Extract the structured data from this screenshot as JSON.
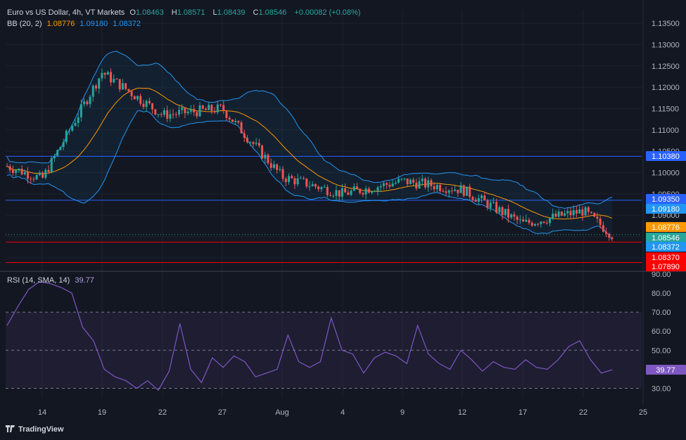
{
  "header": {
    "symbol": "Euro vs US Dollar, 4h, VT Markets",
    "open_label": "O",
    "open": "1.08463",
    "high_label": "H",
    "high": "1.08571",
    "low_label": "L",
    "low": "1.08439",
    "close_label": "C",
    "close": "1.08546",
    "change": "+0.00082 (+0.08%)",
    "bb_label": "BB (20, 2)",
    "bb_basis": "1.08776",
    "bb_upper": "1.09180",
    "bb_lower": "1.08372",
    "rsi_label": "RSI (14, SMA, 14)",
    "rsi_value": "39.77"
  },
  "logo_text": "TradingView",
  "colors": {
    "background": "#131722",
    "up": "#26a69a",
    "down": "#ef5350",
    "bb_basis": "#ff9800",
    "bb_band": "#2196f3",
    "rsi": "#7e57c2",
    "hline_blue": "#2962ff",
    "hline_red": "#ff0000"
  },
  "chart_data": [
    {
      "type": "candlestick",
      "title": "Euro vs US Dollar, 4h, VT Markets",
      "ylim": [
        1.0775,
        1.1365
      ],
      "y_ticks": [
        "1.13500",
        "1.13000",
        "1.12500",
        "1.12000",
        "1.11500",
        "1.11000",
        "1.10500",
        "1.10000",
        "1.09500",
        "1.09000",
        "1.08500",
        "1.08000"
      ],
      "x_ticks": [
        "14",
        "19",
        "22",
        "27",
        "Aug",
        "4",
        "9",
        "12",
        "17",
        "22",
        "25"
      ],
      "anchors": [
        {
          "tick": "14",
          "value": 1.0985
        },
        {
          "tick": "19",
          "value": 1.1235
        },
        {
          "tick": "22",
          "value": 1.1135
        },
        {
          "tick": "27",
          "value": 1.115
        },
        {
          "tick": "Aug",
          "value": 1.099
        },
        {
          "tick": "4",
          "value": 1.095
        },
        {
          "tick": "9",
          "value": 1.098
        },
        {
          "tick": "12",
          "value": 1.096
        },
        {
          "tick": "17",
          "value": 1.088
        },
        {
          "tick": "22",
          "value": 1.091
        }
      ],
      "last_close": 1.08546,
      "horizontal_lines": [
        {
          "value": 1.1038,
          "label": "1.10380",
          "color": "#2962ff"
        },
        {
          "value": 1.0935,
          "label": "1.09350",
          "color": "#2962ff"
        },
        {
          "value": 1.0837,
          "label": "1.08370",
          "color": "#ff0000"
        },
        {
          "value": 1.0789,
          "label": "1.07890",
          "color": "#ff0000"
        }
      ],
      "price_labels": [
        {
          "value": 1.0918,
          "label": "1.09180",
          "color": "#2196f3"
        },
        {
          "value": 1.08776,
          "label": "1.08776",
          "color": "#ff9800"
        },
        {
          "value": 1.08546,
          "label": "1.08546",
          "color": "#26a69a"
        },
        {
          "value": 1.08372,
          "label": "1.08372",
          "color": "#2196f3"
        }
      ],
      "indicators": [
        "Bollinger Bands (20, 2)"
      ]
    },
    {
      "type": "line",
      "title": "RSI (14, SMA, 14)",
      "ylim": [
        25,
        90
      ],
      "y_ticks": [
        "90.00",
        "80.00",
        "70.00",
        "60.00",
        "50.00",
        "40.00",
        "30.00"
      ],
      "levels": [
        70,
        50,
        30
      ],
      "series": [
        {
          "values": [
            63,
            73,
            82,
            86,
            85,
            83,
            80,
            62,
            55,
            40,
            36,
            34,
            30,
            34,
            29,
            39,
            64,
            40,
            33,
            46,
            41,
            47,
            44,
            36,
            38,
            40,
            58,
            44,
            41,
            44,
            67,
            50,
            48,
            38,
            46,
            49,
            47,
            43,
            63,
            48,
            43,
            40,
            50,
            45,
            39,
            44,
            41,
            40,
            45,
            41,
            40,
            45,
            52,
            55,
            45,
            38,
            39.77
          ]
        }
      ],
      "current": 39.77
    }
  ]
}
